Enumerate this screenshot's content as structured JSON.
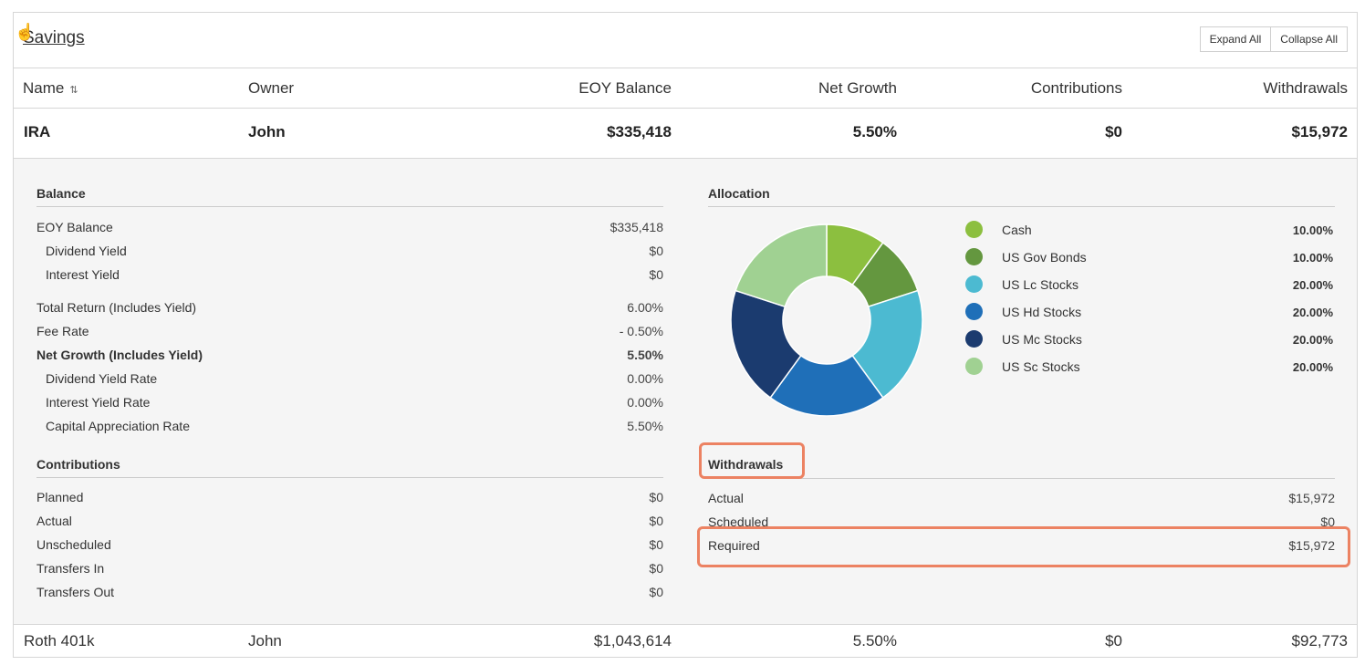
{
  "section": {
    "title": "Savings"
  },
  "buttons": {
    "expand_all": "Expand All",
    "collapse_all": "Collapse All"
  },
  "columns": {
    "name": "Name",
    "owner": "Owner",
    "eoy_balance": "EOY Balance",
    "net_growth": "Net Growth",
    "contributions": "Contributions",
    "withdrawals": "Withdrawals"
  },
  "accounts": [
    {
      "name": "IRA",
      "owner": "John",
      "eoy_balance": "$335,418",
      "net_growth": "5.50%",
      "contributions": "$0",
      "withdrawals": "$15,972"
    },
    {
      "name": "Roth 401k",
      "owner": "John",
      "eoy_balance": "$1,043,614",
      "net_growth": "5.50%",
      "contributions": "$0",
      "withdrawals": "$92,773"
    }
  ],
  "detail": {
    "balance": {
      "title": "Balance",
      "rows": [
        {
          "label": "EOY Balance",
          "value": "$335,418"
        },
        {
          "label": "Dividend Yield",
          "value": "$0"
        },
        {
          "label": "Interest Yield",
          "value": "$0"
        },
        {
          "label": "Total Return (Includes Yield)",
          "value": "6.00%"
        },
        {
          "label": "Fee Rate",
          "value": "- 0.50%"
        },
        {
          "label": "Net Growth (Includes Yield)",
          "value": "5.50%"
        },
        {
          "label": "Dividend Yield Rate",
          "value": "0.00%"
        },
        {
          "label": "Interest Yield Rate",
          "value": "0.00%"
        },
        {
          "label": "Capital Appreciation Rate",
          "value": "5.50%"
        }
      ]
    },
    "contributions": {
      "title": "Contributions",
      "rows": [
        {
          "label": "Planned",
          "value": "$0"
        },
        {
          "label": "Actual",
          "value": "$0"
        },
        {
          "label": "Unscheduled",
          "value": "$0"
        },
        {
          "label": "Transfers In",
          "value": "$0"
        },
        {
          "label": "Transfers Out",
          "value": "$0"
        }
      ]
    },
    "allocation": {
      "title": "Allocation",
      "items": [
        {
          "label": "Cash",
          "value": "10.00%",
          "pct": 10,
          "color": "#8cbf3f"
        },
        {
          "label": "US Gov Bonds",
          "value": "10.00%",
          "pct": 10,
          "color": "#64973f"
        },
        {
          "label": "US Lc Stocks",
          "value": "20.00%",
          "pct": 20,
          "color": "#4cbad1"
        },
        {
          "label": "US Hd Stocks",
          "value": "20.00%",
          "pct": 20,
          "color": "#1f6fb8"
        },
        {
          "label": "US Mc Stocks",
          "value": "20.00%",
          "pct": 20,
          "color": "#1b3b6f"
        },
        {
          "label": "US Sc Stocks",
          "value": "20.00%",
          "pct": 20,
          "color": "#a0d192"
        }
      ]
    },
    "withdrawals": {
      "title": "Withdrawals",
      "rows": [
        {
          "label": "Actual",
          "value": "$15,972"
        },
        {
          "label": "Scheduled",
          "value": "$0"
        },
        {
          "label": "Required",
          "value": "$15,972"
        }
      ]
    }
  },
  "colors": {
    "highlight": "#ec8262"
  },
  "cursor_icon": "hand-pointer-icon"
}
